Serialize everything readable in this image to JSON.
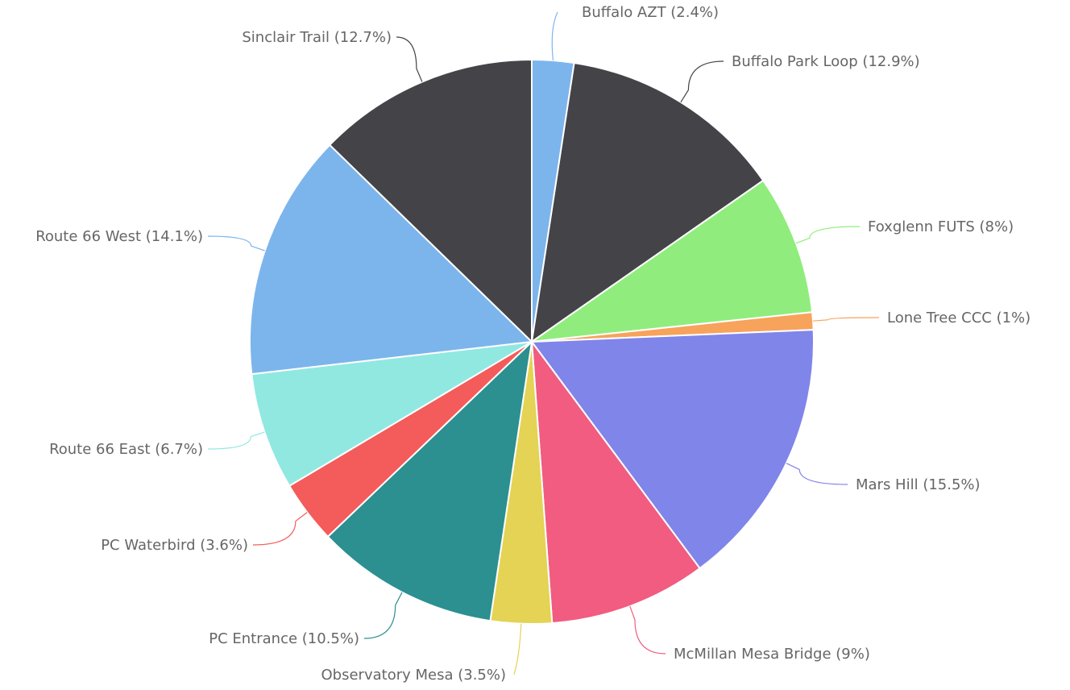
{
  "chart_data": {
    "type": "pie",
    "title": "",
    "slices": [
      {
        "label": "Buffalo AZT (2.4%)",
        "name": "Buffalo AZT",
        "value": 2.4,
        "color": "#7cb5ec"
      },
      {
        "label": "Buffalo Park Loop (12.9%)",
        "name": "Buffalo Park Loop",
        "value": 12.9,
        "color": "#434348"
      },
      {
        "label": "Foxglenn FUTS (8%)",
        "name": "Foxglenn FUTS",
        "value": 8,
        "color": "#90ed7d"
      },
      {
        "label": "Lone Tree CCC (1%)",
        "name": "Lone Tree CCC",
        "value": 1,
        "color": "#f7a35c"
      },
      {
        "label": "Mars Hill (15.5%)",
        "name": "Mars Hill",
        "value": 15.5,
        "color": "#8085e9"
      },
      {
        "label": "McMillan Mesa Bridge (9%)",
        "name": "McMillan Mesa Bridge",
        "value": 9,
        "color": "#f15c80"
      },
      {
        "label": "Observatory Mesa (3.5%)",
        "name": "Observatory Mesa",
        "value": 3.5,
        "color": "#e4d354"
      },
      {
        "label": "PC Entrance (10.5%)",
        "name": "PC Entrance",
        "value": 10.5,
        "color": "#2b908f"
      },
      {
        "label": "PC Waterbird (3.6%)",
        "name": "PC Waterbird",
        "value": 3.6,
        "color": "#f45b5b"
      },
      {
        "label": "Route 66 East (6.7%)",
        "name": "Route 66 East",
        "value": 6.7,
        "color": "#91e8e1"
      },
      {
        "label": "Route 66 West (14.1%)",
        "name": "Route 66 West",
        "value": 14.1,
        "color": "#7cb5ec"
      },
      {
        "label": "Sinclair Trail (12.7%)",
        "name": "Sinclair Trail",
        "value": 12.7,
        "color": "#434348"
      }
    ]
  }
}
